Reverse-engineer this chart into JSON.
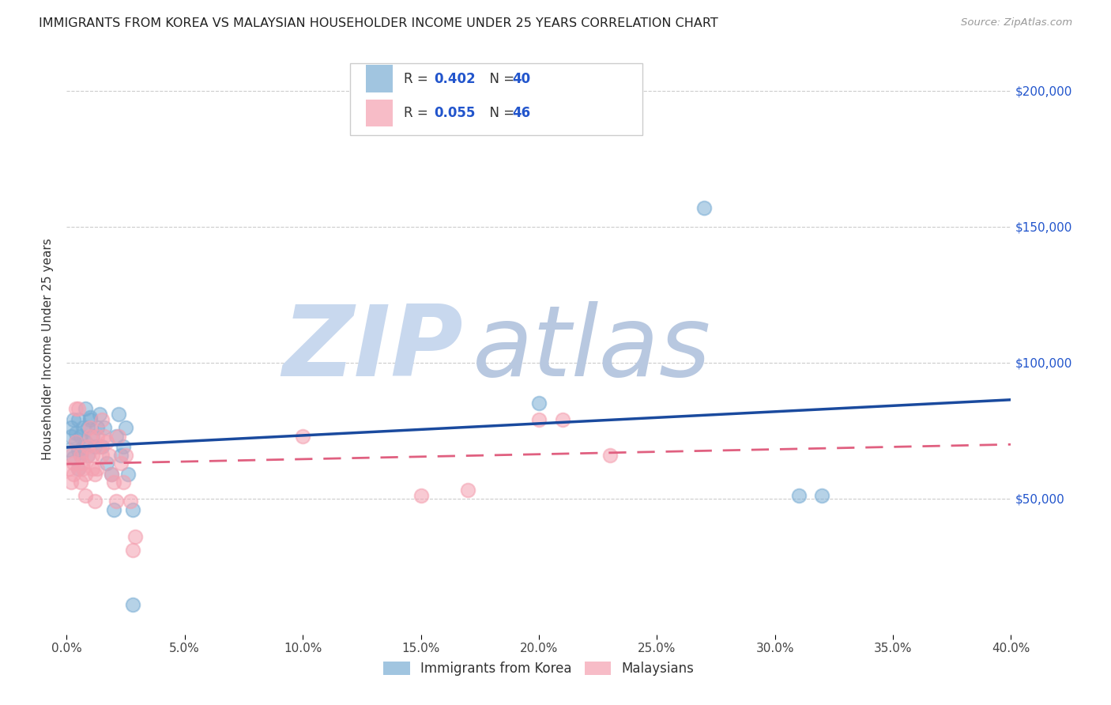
{
  "title": "IMMIGRANTS FROM KOREA VS MALAYSIAN HOUSEHOLDER INCOME UNDER 25 YEARS CORRELATION CHART",
  "source": "Source: ZipAtlas.com",
  "ylabel": "Householder Income Under 25 years",
  "legend_bottom": [
    "Immigrants from Korea",
    "Malaysians"
  ],
  "x_range": [
    0.0,
    0.4
  ],
  "y_range": [
    0,
    210000
  ],
  "yticks": [
    50000,
    100000,
    150000,
    200000
  ],
  "ytick_labels": [
    "$50,000",
    "$100,000",
    "$150,000",
    "$200,000"
  ],
  "scatter_blue_color": "#7aadd4",
  "scatter_pink_color": "#f4a0b0",
  "line_blue_color": "#1a4a9e",
  "line_pink_color": "#e06080",
  "watermark_zip": "ZIP",
  "watermark_atlas": "atlas",
  "watermark_color_zip": "#c8d8ee",
  "watermark_color_atlas": "#b8c8e0",
  "background_color": "#ffffff",
  "korea_points": [
    [
      0.001,
      68000
    ],
    [
      0.002,
      76000
    ],
    [
      0.002,
      73000
    ],
    [
      0.003,
      79000
    ],
    [
      0.003,
      65000
    ],
    [
      0.004,
      71000
    ],
    [
      0.004,
      74000
    ],
    [
      0.005,
      68000
    ],
    [
      0.005,
      79000
    ],
    [
      0.005,
      61000
    ],
    [
      0.006,
      66000
    ],
    [
      0.006,
      73000
    ],
    [
      0.007,
      76000
    ],
    [
      0.007,
      69000
    ],
    [
      0.008,
      83000
    ],
    [
      0.008,
      71000
    ],
    [
      0.009,
      76000
    ],
    [
      0.009,
      66000
    ],
    [
      0.01,
      80000
    ],
    [
      0.01,
      79000
    ],
    [
      0.011,
      73000
    ],
    [
      0.012,
      69000
    ],
    [
      0.013,
      76000
    ],
    [
      0.014,
      81000
    ],
    [
      0.015,
      69000
    ],
    [
      0.016,
      76000
    ],
    [
      0.017,
      63000
    ],
    [
      0.019,
      59000
    ],
    [
      0.02,
      46000
    ],
    [
      0.021,
      73000
    ],
    [
      0.022,
      81000
    ],
    [
      0.023,
      66000
    ],
    [
      0.024,
      69000
    ],
    [
      0.025,
      76000
    ],
    [
      0.026,
      59000
    ],
    [
      0.028,
      46000
    ],
    [
      0.028,
      11000
    ],
    [
      0.2,
      85000
    ],
    [
      0.27,
      157000
    ],
    [
      0.31,
      51000
    ],
    [
      0.32,
      51000
    ]
  ],
  "malaysia_points": [
    [
      0.001,
      61000
    ],
    [
      0.002,
      56000
    ],
    [
      0.002,
      66000
    ],
    [
      0.003,
      63000
    ],
    [
      0.003,
      59000
    ],
    [
      0.004,
      71000
    ],
    [
      0.004,
      83000
    ],
    [
      0.005,
      83000
    ],
    [
      0.005,
      61000
    ],
    [
      0.006,
      56000
    ],
    [
      0.006,
      66000
    ],
    [
      0.007,
      61000
    ],
    [
      0.007,
      63000
    ],
    [
      0.008,
      59000
    ],
    [
      0.008,
      51000
    ],
    [
      0.009,
      66000
    ],
    [
      0.009,
      69000
    ],
    [
      0.01,
      76000
    ],
    [
      0.01,
      73000
    ],
    [
      0.011,
      66000
    ],
    [
      0.011,
      61000
    ],
    [
      0.012,
      59000
    ],
    [
      0.012,
      49000
    ],
    [
      0.013,
      61000
    ],
    [
      0.013,
      73000
    ],
    [
      0.014,
      69000
    ],
    [
      0.015,
      66000
    ],
    [
      0.015,
      79000
    ],
    [
      0.016,
      73000
    ],
    [
      0.017,
      71000
    ],
    [
      0.018,
      66000
    ],
    [
      0.019,
      59000
    ],
    [
      0.02,
      56000
    ],
    [
      0.021,
      49000
    ],
    [
      0.022,
      73000
    ],
    [
      0.023,
      63000
    ],
    [
      0.024,
      56000
    ],
    [
      0.025,
      66000
    ],
    [
      0.027,
      49000
    ],
    [
      0.028,
      31000
    ],
    [
      0.029,
      36000
    ],
    [
      0.1,
      73000
    ],
    [
      0.15,
      51000
    ],
    [
      0.17,
      53000
    ],
    [
      0.2,
      79000
    ],
    [
      0.21,
      79000
    ],
    [
      0.23,
      66000
    ]
  ]
}
